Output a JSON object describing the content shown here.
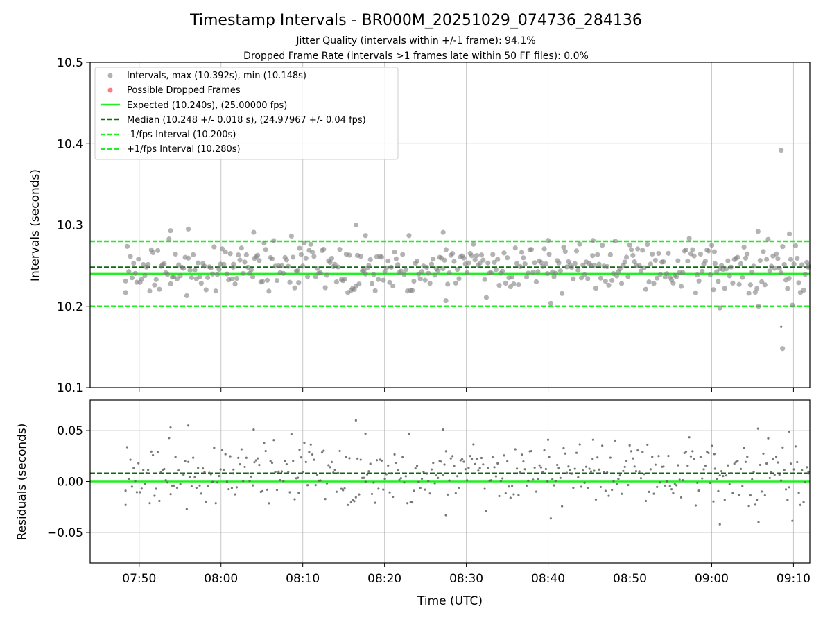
{
  "chart_data": [
    {
      "type": "scatter",
      "title": "Timestamp Intervals - BR000M_20251029_074736_284136",
      "subtitle_1": "Jitter Quality (intervals within +/-1 frame): 94.1%",
      "subtitle_2": "Dropped Frame Rate (intervals >1 frames late within 50 FF files): 0.0%",
      "ylabel": "Intervals (seconds)",
      "ylim": [
        10.1,
        10.5
      ],
      "yticks": [
        10.1,
        10.2,
        10.3,
        10.4,
        10.5
      ],
      "ytick_labels": [
        "10.1",
        "10.2",
        "10.3",
        "10.4",
        "10.5"
      ],
      "xlim": [
        "07:44:00",
        "09:12:00"
      ],
      "grid": true,
      "legend_position": "top-left",
      "legend": [
        "Intervals, max (10.392s), min (10.148s)",
        "Possible Dropped Frames",
        "Expected (10.240s), (25.00000 fps)",
        "Median (10.248 +/- 0.018 s), (24.97967 +/- 0.04 fps)",
        "-1/fps Interval (10.200s)",
        "+1/fps Interval (10.280s)"
      ],
      "reference_lines": {
        "expected": 10.24,
        "median": 10.248,
        "minus_one_fps": 10.2,
        "plus_one_fps": 10.28
      },
      "series": [
        {
          "name": "Intervals, max (10.392s), min (10.148s)",
          "x": [
            "07:48:20",
            "07:53:50",
            "07:56:00",
            "08:01:30",
            "08:04:00",
            "08:09:30",
            "08:16:30",
            "08:17:40",
            "08:27:10",
            "08:27:30",
            "08:40:00",
            "08:45:30",
            "09:00:20",
            "09:01:00",
            "09:05:40",
            "09:08:30",
            "09:08:40",
            "09:09:30",
            "09:11:50"
          ],
          "y": [
            10.217,
            10.293,
            10.295,
            10.248,
            10.291,
            10.229,
            10.3,
            10.287,
            10.291,
            10.207,
            10.281,
            10.281,
            10.267,
            10.198,
            10.292,
            10.392,
            10.148,
            10.289,
            10.248
          ],
          "count": 444,
          "spread_std": 0.018
        },
        {
          "name": "Possible Dropped Frames",
          "x": [],
          "y": []
        }
      ]
    },
    {
      "type": "scatter",
      "xlabel": "Time (UTC)",
      "ylabel": "Residuals (seconds)",
      "ylim": [
        -0.08,
        0.08
      ],
      "yticks": [
        -0.05,
        0.0,
        0.05
      ],
      "ytick_labels": [
        "−0.05",
        "0.00",
        "0.05"
      ],
      "xticks": [
        "07:50",
        "08:00",
        "08:10",
        "08:20",
        "08:30",
        "08:40",
        "08:50",
        "09:00",
        "09:10"
      ],
      "grid": true,
      "reference_lines": {
        "zero": 0.0,
        "median_residual": 0.008
      },
      "series": [
        {
          "name": "Residuals",
          "derived_from": "intervals minus 10.240"
        }
      ]
    }
  ],
  "colors": {
    "points": "#808080",
    "dropped": "#ff6b6b",
    "expected": "#22ee22",
    "median": "#0b6b0b",
    "fps_bounds": "#22ee22",
    "grid": "#b0b0b0"
  }
}
